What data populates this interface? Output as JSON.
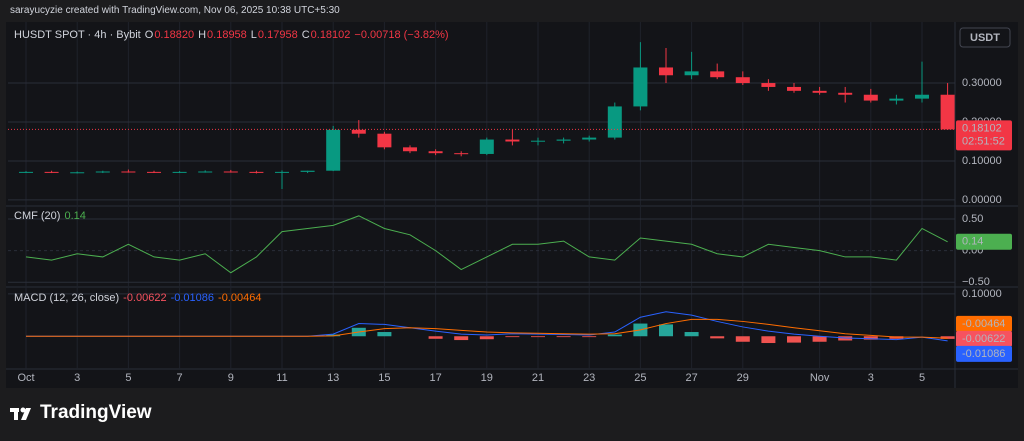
{
  "page": {
    "credit": "sarayucyzie created with TradingView.com, Nov 06, 2025 10:38 UTC+5:30",
    "brand": "TradingView"
  },
  "chart_data": [
    {
      "type": "candlestick",
      "title": "HUSDT SPOT · 4h · Bybit",
      "ohlc_labels": [
        "O",
        "H",
        "L",
        "C"
      ],
      "ohlc_values": [
        "0.18820",
        "0.18958",
        "0.17958",
        "0.18102"
      ],
      "change": "−0.00718 (−3.82%)",
      "currency": "USDT",
      "countdown": "02:51:52",
      "categories": [
        "Oct",
        null,
        "3",
        null,
        "5",
        null,
        "7",
        null,
        "9",
        null,
        "11",
        null,
        "13",
        null,
        "15",
        null,
        "17",
        null,
        "19",
        null,
        "21",
        null,
        "23",
        null,
        "25",
        null,
        "27",
        null,
        "29",
        null,
        null,
        "Nov",
        null,
        "3",
        null,
        "5",
        null
      ],
      "open": [
        0.071,
        0.072,
        0.07,
        0.071,
        0.073,
        0.072,
        0.071,
        0.072,
        0.073,
        0.072,
        0.071,
        0.072,
        0.075,
        0.18,
        0.17,
        0.135,
        0.125,
        0.12,
        0.118,
        0.155,
        0.15,
        0.152,
        0.155,
        0.16,
        0.24,
        0.34,
        0.32,
        0.33,
        0.315,
        0.3,
        0.29,
        0.28,
        0.275,
        0.27,
        0.255,
        0.26,
        0.27
      ],
      "high": [
        0.074,
        0.075,
        0.073,
        0.075,
        0.078,
        0.075,
        0.074,
        0.076,
        0.077,
        0.075,
        0.076,
        0.075,
        0.19,
        0.205,
        0.175,
        0.14,
        0.13,
        0.125,
        0.16,
        0.18,
        0.16,
        0.16,
        0.165,
        0.25,
        0.405,
        0.39,
        0.38,
        0.35,
        0.33,
        0.31,
        0.3,
        0.29,
        0.29,
        0.285,
        0.27,
        0.355,
        0.3
      ],
      "low": [
        0.069,
        0.069,
        0.068,
        0.069,
        0.07,
        0.069,
        0.069,
        0.07,
        0.07,
        0.068,
        0.028,
        0.069,
        0.074,
        0.16,
        0.13,
        0.12,
        0.115,
        0.112,
        0.115,
        0.14,
        0.14,
        0.145,
        0.15,
        0.155,
        0.23,
        0.3,
        0.31,
        0.31,
        0.295,
        0.28,
        0.275,
        0.27,
        0.25,
        0.25,
        0.245,
        0.25,
        0.17958
      ],
      "close": [
        0.072,
        0.07,
        0.071,
        0.073,
        0.072,
        0.071,
        0.072,
        0.073,
        0.072,
        0.071,
        0.072,
        0.075,
        0.18,
        0.17,
        0.135,
        0.125,
        0.12,
        0.118,
        0.155,
        0.15,
        0.152,
        0.155,
        0.16,
        0.24,
        0.34,
        0.32,
        0.33,
        0.315,
        0.3,
        0.29,
        0.28,
        0.275,
        0.27,
        0.255,
        0.26,
        0.27,
        0.18102
      ],
      "up_color": "#089981",
      "down_color": "#f23645",
      "ylim": [
        -0.013,
        0.449
      ],
      "yticks": [
        {
          "value": 0.3,
          "label": "0.30000"
        },
        {
          "value": 0.2,
          "label": "0.20000"
        },
        {
          "value": 0.1,
          "label": "0.10000"
        },
        {
          "value": 0,
          "label": "0.00000"
        }
      ]
    },
    {
      "type": "line",
      "title": "CMF (20)",
      "color": "#4caf50",
      "values": [
        -0.1,
        -0.15,
        -0.05,
        -0.1,
        0.1,
        -0.1,
        -0.15,
        -0.05,
        -0.35,
        -0.1,
        0.3,
        0.35,
        0.4,
        0.55,
        0.35,
        0.25,
        0.0,
        -0.3,
        -0.1,
        0.1,
        0.1,
        0.15,
        -0.1,
        -0.15,
        0.2,
        0.15,
        0.1,
        -0.05,
        -0.1,
        0.1,
        0.05,
        0.0,
        -0.1,
        -0.1,
        -0.15,
        0.35,
        0.14
      ],
      "ylim": [
        -0.56,
        0.69
      ],
      "yticks": [
        {
          "value": 0.5,
          "label": "0.50"
        },
        {
          "value": 0,
          "label": "0.00"
        },
        {
          "value": -0.5,
          "label": "−0.50"
        }
      ]
    },
    {
      "type": "macd",
      "title": "MACD (12, 26, close)",
      "up_color": "#26a69a",
      "down_color": "#ef5350",
      "series": [
        {
          "kind": "histogram",
          "color": "#f7525f",
          "values": [
            0,
            0,
            0,
            0,
            0,
            0,
            0,
            0,
            0,
            0,
            0,
            0,
            0.004,
            0.02,
            0.01,
            0,
            -0.006,
            -0.009,
            -0.007,
            -0.002,
            -0.002,
            -0.002,
            -0.002,
            0.004,
            0.03,
            0.028,
            0.01,
            -0.005,
            -0.013,
            -0.016,
            -0.015,
            -0.013,
            -0.01,
            -0.008,
            -0.006,
            0,
            -0.00622
          ]
        },
        {
          "kind": "line",
          "color": "#2962ff",
          "values": [
            0,
            0,
            0,
            0,
            0,
            0,
            0,
            0,
            0,
            0,
            0,
            0,
            0.005,
            0.03,
            0.028,
            0.02,
            0.012,
            0.005,
            0.003,
            0.006,
            0.005,
            0.004,
            0.003,
            0.01,
            0.045,
            0.058,
            0.05,
            0.035,
            0.022,
            0.012,
            0.005,
            0,
            -0.004,
            -0.006,
            -0.008,
            -0.002,
            -0.01086
          ]
        },
        {
          "kind": "line",
          "color": "#ff6d00",
          "values": [
            0,
            0,
            0,
            0,
            0,
            0,
            0,
            0,
            0,
            0,
            0,
            0,
            0.001,
            0.01,
            0.018,
            0.02,
            0.018,
            0.014,
            0.01,
            0.008,
            0.007,
            0.006,
            0.005,
            0.006,
            0.015,
            0.03,
            0.04,
            0.04,
            0.035,
            0.028,
            0.02,
            0.013,
            0.006,
            0.002,
            -0.002,
            -0.002,
            -0.00464
          ]
        }
      ],
      "ylim": [
        -0.075,
        0.114
      ],
      "yticks": [
        {
          "value": 0.1,
          "label": "0.10000"
        }
      ]
    }
  ]
}
